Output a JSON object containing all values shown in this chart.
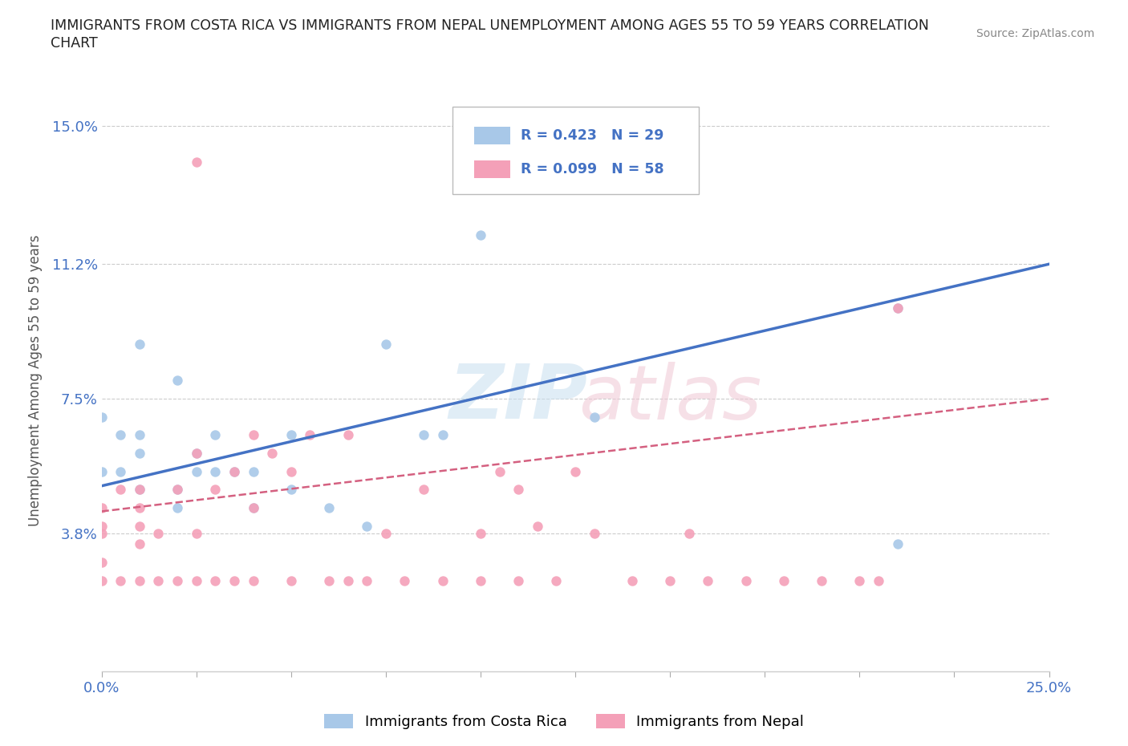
{
  "title_line1": "IMMIGRANTS FROM COSTA RICA VS IMMIGRANTS FROM NEPAL UNEMPLOYMENT AMONG AGES 55 TO 59 YEARS CORRELATION",
  "title_line2": "CHART",
  "source_text": "Source: ZipAtlas.com",
  "ylabel": "Unemployment Among Ages 55 to 59 years",
  "xlim": [
    0.0,
    0.25
  ],
  "ylim": [
    0.0,
    0.16
  ],
  "yticks": [
    0.038,
    0.075,
    0.112,
    0.15
  ],
  "ytick_labels": [
    "3.8%",
    "7.5%",
    "11.2%",
    "15.0%"
  ],
  "xticks": [
    0.0,
    0.025,
    0.05,
    0.075,
    0.1,
    0.125,
    0.15,
    0.175,
    0.2,
    0.225,
    0.25
  ],
  "series1_color": "#a8c8e8",
  "series2_color": "#f4a0b8",
  "trendline1_color": "#4472c4",
  "trendline2_color": "#d46080",
  "R1": 0.423,
  "N1": 29,
  "R2": 0.099,
  "N2": 58,
  "background_color": "#ffffff",
  "grid_color": "#cccccc",
  "trendline1_start_y": 0.051,
  "trendline1_end_y": 0.112,
  "trendline2_start_y": 0.044,
  "trendline2_end_y": 0.075,
  "costa_rica_x": [
    0.0,
    0.0,
    0.005,
    0.005,
    0.01,
    0.01,
    0.01,
    0.01,
    0.02,
    0.02,
    0.02,
    0.025,
    0.025,
    0.03,
    0.03,
    0.035,
    0.04,
    0.04,
    0.05,
    0.05,
    0.06,
    0.07,
    0.075,
    0.085,
    0.09,
    0.1,
    0.13,
    0.21,
    0.21
  ],
  "costa_rica_y": [
    0.055,
    0.07,
    0.055,
    0.065,
    0.05,
    0.06,
    0.065,
    0.09,
    0.045,
    0.05,
    0.08,
    0.055,
    0.06,
    0.055,
    0.065,
    0.055,
    0.045,
    0.055,
    0.05,
    0.065,
    0.045,
    0.04,
    0.09,
    0.065,
    0.065,
    0.12,
    0.07,
    0.1,
    0.035
  ],
  "nepal_x": [
    0.0,
    0.0,
    0.0,
    0.0,
    0.0,
    0.005,
    0.005,
    0.01,
    0.01,
    0.01,
    0.01,
    0.01,
    0.015,
    0.015,
    0.02,
    0.02,
    0.025,
    0.025,
    0.025,
    0.03,
    0.03,
    0.035,
    0.035,
    0.04,
    0.04,
    0.04,
    0.045,
    0.05,
    0.05,
    0.055,
    0.06,
    0.065,
    0.065,
    0.07,
    0.075,
    0.08,
    0.085,
    0.09,
    0.1,
    0.1,
    0.105,
    0.11,
    0.11,
    0.115,
    0.12,
    0.125,
    0.13,
    0.14,
    0.15,
    0.155,
    0.16,
    0.17,
    0.18,
    0.19,
    0.2,
    0.205,
    0.21,
    0.025
  ],
  "nepal_y": [
    0.025,
    0.03,
    0.038,
    0.04,
    0.045,
    0.025,
    0.05,
    0.025,
    0.035,
    0.04,
    0.045,
    0.05,
    0.025,
    0.038,
    0.025,
    0.05,
    0.025,
    0.038,
    0.06,
    0.025,
    0.05,
    0.025,
    0.055,
    0.025,
    0.045,
    0.065,
    0.06,
    0.025,
    0.055,
    0.065,
    0.025,
    0.025,
    0.065,
    0.025,
    0.038,
    0.025,
    0.05,
    0.025,
    0.038,
    0.025,
    0.055,
    0.025,
    0.05,
    0.04,
    0.025,
    0.055,
    0.038,
    0.025,
    0.025,
    0.038,
    0.025,
    0.025,
    0.025,
    0.025,
    0.025,
    0.025,
    0.1,
    0.14
  ]
}
